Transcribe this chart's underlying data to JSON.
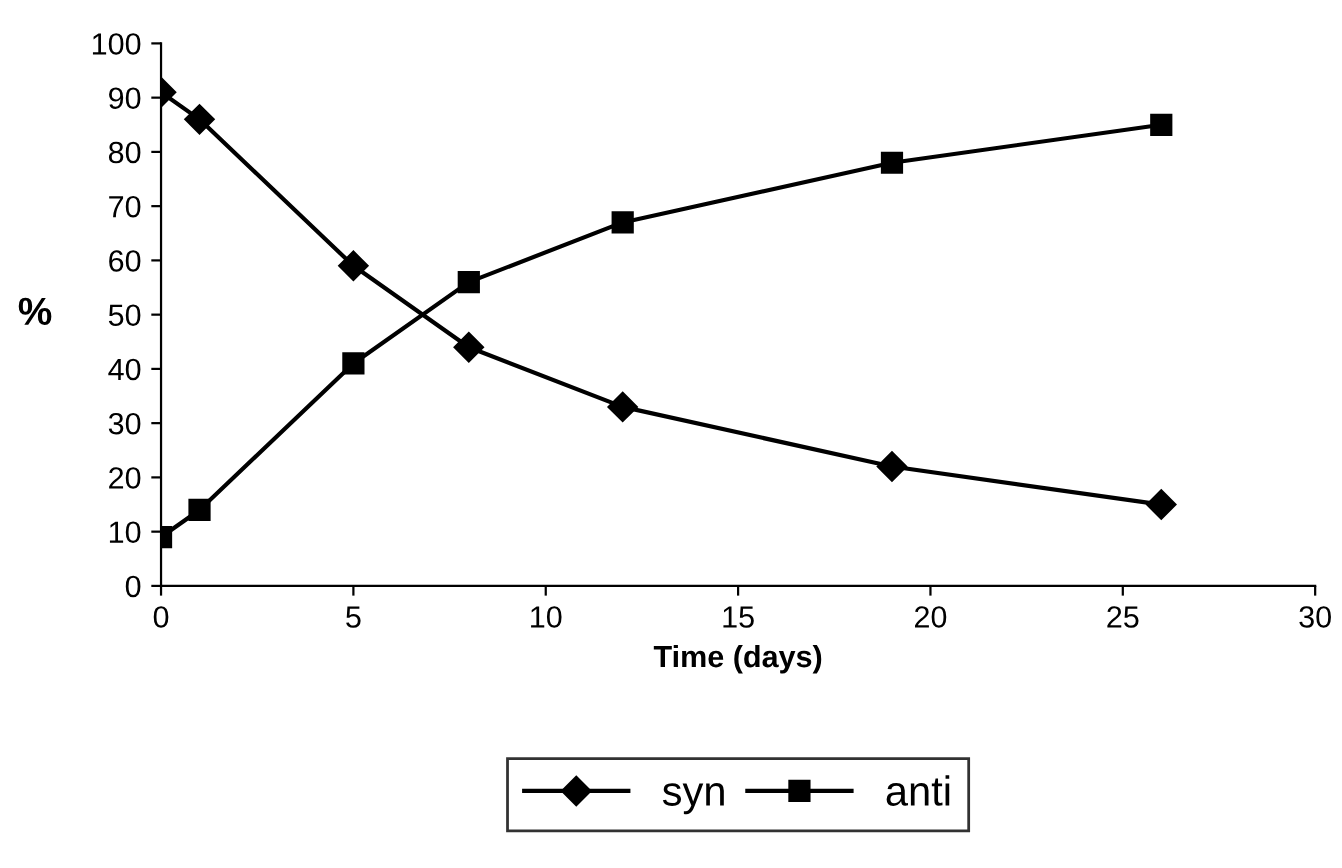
{
  "chart_data": {
    "type": "line",
    "xlabel": "Time (days)",
    "ylabel": "%",
    "x": [
      0,
      1,
      5,
      8,
      12,
      19,
      26
    ],
    "series": [
      {
        "name": "syn",
        "color": "#000000",
        "marker": "diamond",
        "values": [
          91,
          86,
          59,
          44,
          33,
          22,
          15
        ]
      },
      {
        "name": "anti",
        "color": "#000000",
        "marker": "square",
        "values": [
          9,
          14,
          41,
          56,
          67,
          78,
          85
        ]
      }
    ],
    "xlim": [
      0,
      30
    ],
    "xticks": [
      0,
      5,
      10,
      15,
      20,
      25,
      30
    ],
    "ylim": [
      0,
      100
    ],
    "yticks": [
      0,
      10,
      20,
      30,
      40,
      50,
      60,
      70,
      80,
      90,
      100
    ],
    "grid": false,
    "legend": "bottom",
    "line_style": "solid"
  }
}
